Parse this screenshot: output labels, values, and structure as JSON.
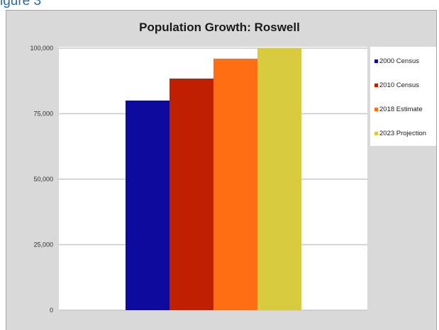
{
  "caption": "igure 3",
  "chart_data": {
    "type": "bar",
    "title": "Population Growth: Roswell",
    "xlabel": "",
    "ylabel": "",
    "ylim": [
      0,
      100000
    ],
    "yticks": [
      0,
      25000,
      50000,
      75000,
      100000
    ],
    "ytick_labels": [
      "0",
      "25,000",
      "50,000",
      "75,000",
      "100,000"
    ],
    "grid": true,
    "legend_position": "right",
    "series": [
      {
        "name": "2000 Census",
        "value": 80000,
        "color": "#0f0a9e"
      },
      {
        "name": "2010 Census",
        "value": 88400,
        "color": "#c02000"
      },
      {
        "name": "2018 Estimate",
        "value": 96000,
        "color": "#ff6e12"
      },
      {
        "name": "2023 Projection",
        "value": 100000,
        "color": "#d8cb3d"
      }
    ]
  }
}
